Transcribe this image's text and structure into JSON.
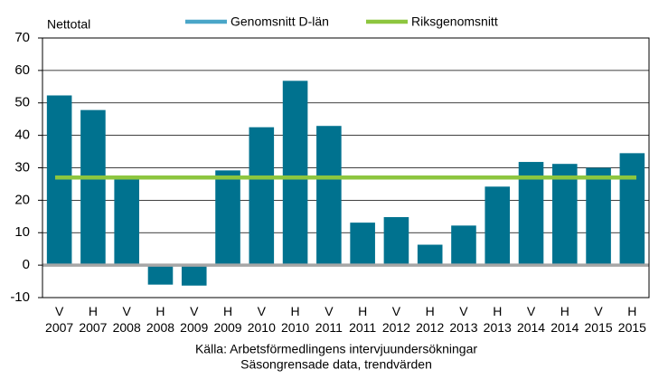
{
  "chart_data": {
    "type": "bar",
    "y_label": "Nettotal",
    "notes": [
      "Källa: Arbetsförmedlingens intervjuundersökningar",
      "Säsongrensade data, trendvärden"
    ],
    "categories": [
      [
        "V",
        "2007"
      ],
      [
        "H",
        "2007"
      ],
      [
        "V",
        "2008"
      ],
      [
        "H",
        "2008"
      ],
      [
        "V",
        "2009"
      ],
      [
        "H",
        "2009"
      ],
      [
        "V",
        "2010"
      ],
      [
        "H",
        "2010"
      ],
      [
        "V",
        "2011"
      ],
      [
        "H",
        "2011"
      ],
      [
        "V",
        "2012"
      ],
      [
        "H",
        "2012"
      ],
      [
        "V",
        "2013"
      ],
      [
        "H",
        "2013"
      ],
      [
        "V",
        "2014"
      ],
      [
        "H",
        "2014"
      ],
      [
        "V",
        "2015"
      ],
      [
        "H",
        "2015"
      ]
    ],
    "values": [
      52.3,
      47.8,
      26.8,
      -6,
      -6.3,
      29.2,
      42.5,
      56.8,
      42.9,
      13.1,
      14.8,
      6.3,
      12.2,
      24.2,
      31.8,
      31.2,
      30,
      34.5
    ],
    "color": "#00728f",
    "reference_lines": [
      {
        "name": "Genomsnitt D-län",
        "color": "#4aa6c8"
      },
      {
        "name": "Riksgenomsnitt",
        "color": "#8dc63f",
        "value": 27
      }
    ],
    "ylim": [
      -10,
      70
    ],
    "yticks": [
      -10,
      0,
      10,
      20,
      30,
      40,
      50,
      60,
      70
    ],
    "grid": true
  }
}
